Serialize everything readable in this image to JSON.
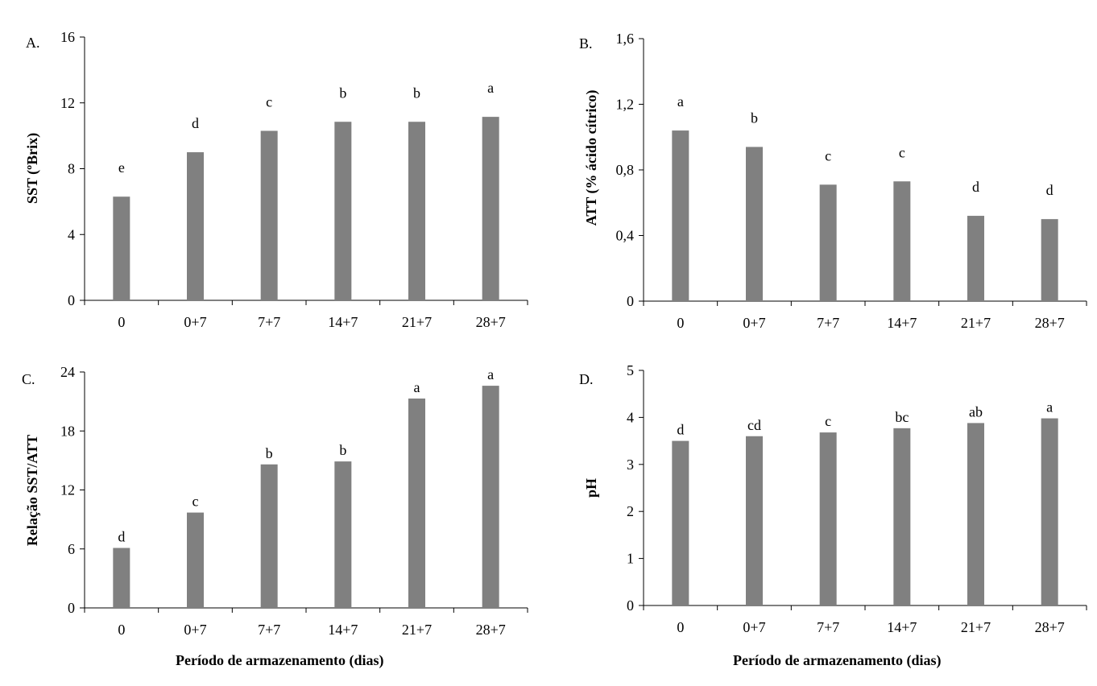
{
  "common": {
    "categories": [
      "0",
      "0+7",
      "7+7",
      "14+7",
      "21+7",
      "28+7"
    ],
    "xlabel": "Período de armazenamento (dias)",
    "bar_color": "#808080"
  },
  "chart_data": [
    {
      "type": "bar",
      "panel": "A.",
      "ylabel": "SST (ºBrix)",
      "categories": [
        "0",
        "0+7",
        "7+7",
        "14+7",
        "21+7",
        "28+7"
      ],
      "values": [
        6.3,
        9.0,
        10.3,
        10.85,
        10.85,
        11.15
      ],
      "letters": [
        "e",
        "d",
        "c",
        "b",
        "b",
        "a"
      ],
      "ylim": [
        0,
        16
      ],
      "yticks": [
        "0",
        "4",
        "8",
        "12",
        "16"
      ]
    },
    {
      "type": "bar",
      "panel": "B.",
      "ylabel": "ATT (% ácido cítrico)",
      "categories": [
        "0",
        "0+7",
        "7+7",
        "14+7",
        "21+7",
        "28+7"
      ],
      "values": [
        1.04,
        0.94,
        0.71,
        0.73,
        0.52,
        0.5
      ],
      "letters": [
        "a",
        "b",
        "c",
        "c",
        "d",
        "d"
      ],
      "ylim": [
        0,
        1.6
      ],
      "yticks": [
        "0",
        "0,4",
        "0,8",
        "1,2",
        "1,6"
      ]
    },
    {
      "type": "bar",
      "panel": "C.",
      "ylabel": "Relação SST/ATT",
      "xlabel": "Período de armazenamento (dias)",
      "categories": [
        "0",
        "0+7",
        "7+7",
        "14+7",
        "21+7",
        "28+7"
      ],
      "values": [
        6.1,
        9.7,
        14.6,
        14.9,
        21.3,
        22.6
      ],
      "letters": [
        "d",
        "c",
        "b",
        "b",
        "a",
        "a"
      ],
      "ylim": [
        0,
        24
      ],
      "yticks": [
        "0",
        "6",
        "12",
        "18",
        "24"
      ]
    },
    {
      "type": "bar",
      "panel": "D.",
      "ylabel": "pH",
      "xlabel": "Período de armazenamento (dias)",
      "categories": [
        "0",
        "0+7",
        "7+7",
        "14+7",
        "21+7",
        "28+7"
      ],
      "values": [
        3.5,
        3.6,
        3.68,
        3.77,
        3.88,
        3.98
      ],
      "letters": [
        "d",
        "cd",
        "c",
        "bc",
        "ab",
        "a"
      ],
      "ylim": [
        0,
        5
      ],
      "yticks": [
        "0",
        "1",
        "2",
        "3",
        "4",
        "5"
      ]
    }
  ]
}
